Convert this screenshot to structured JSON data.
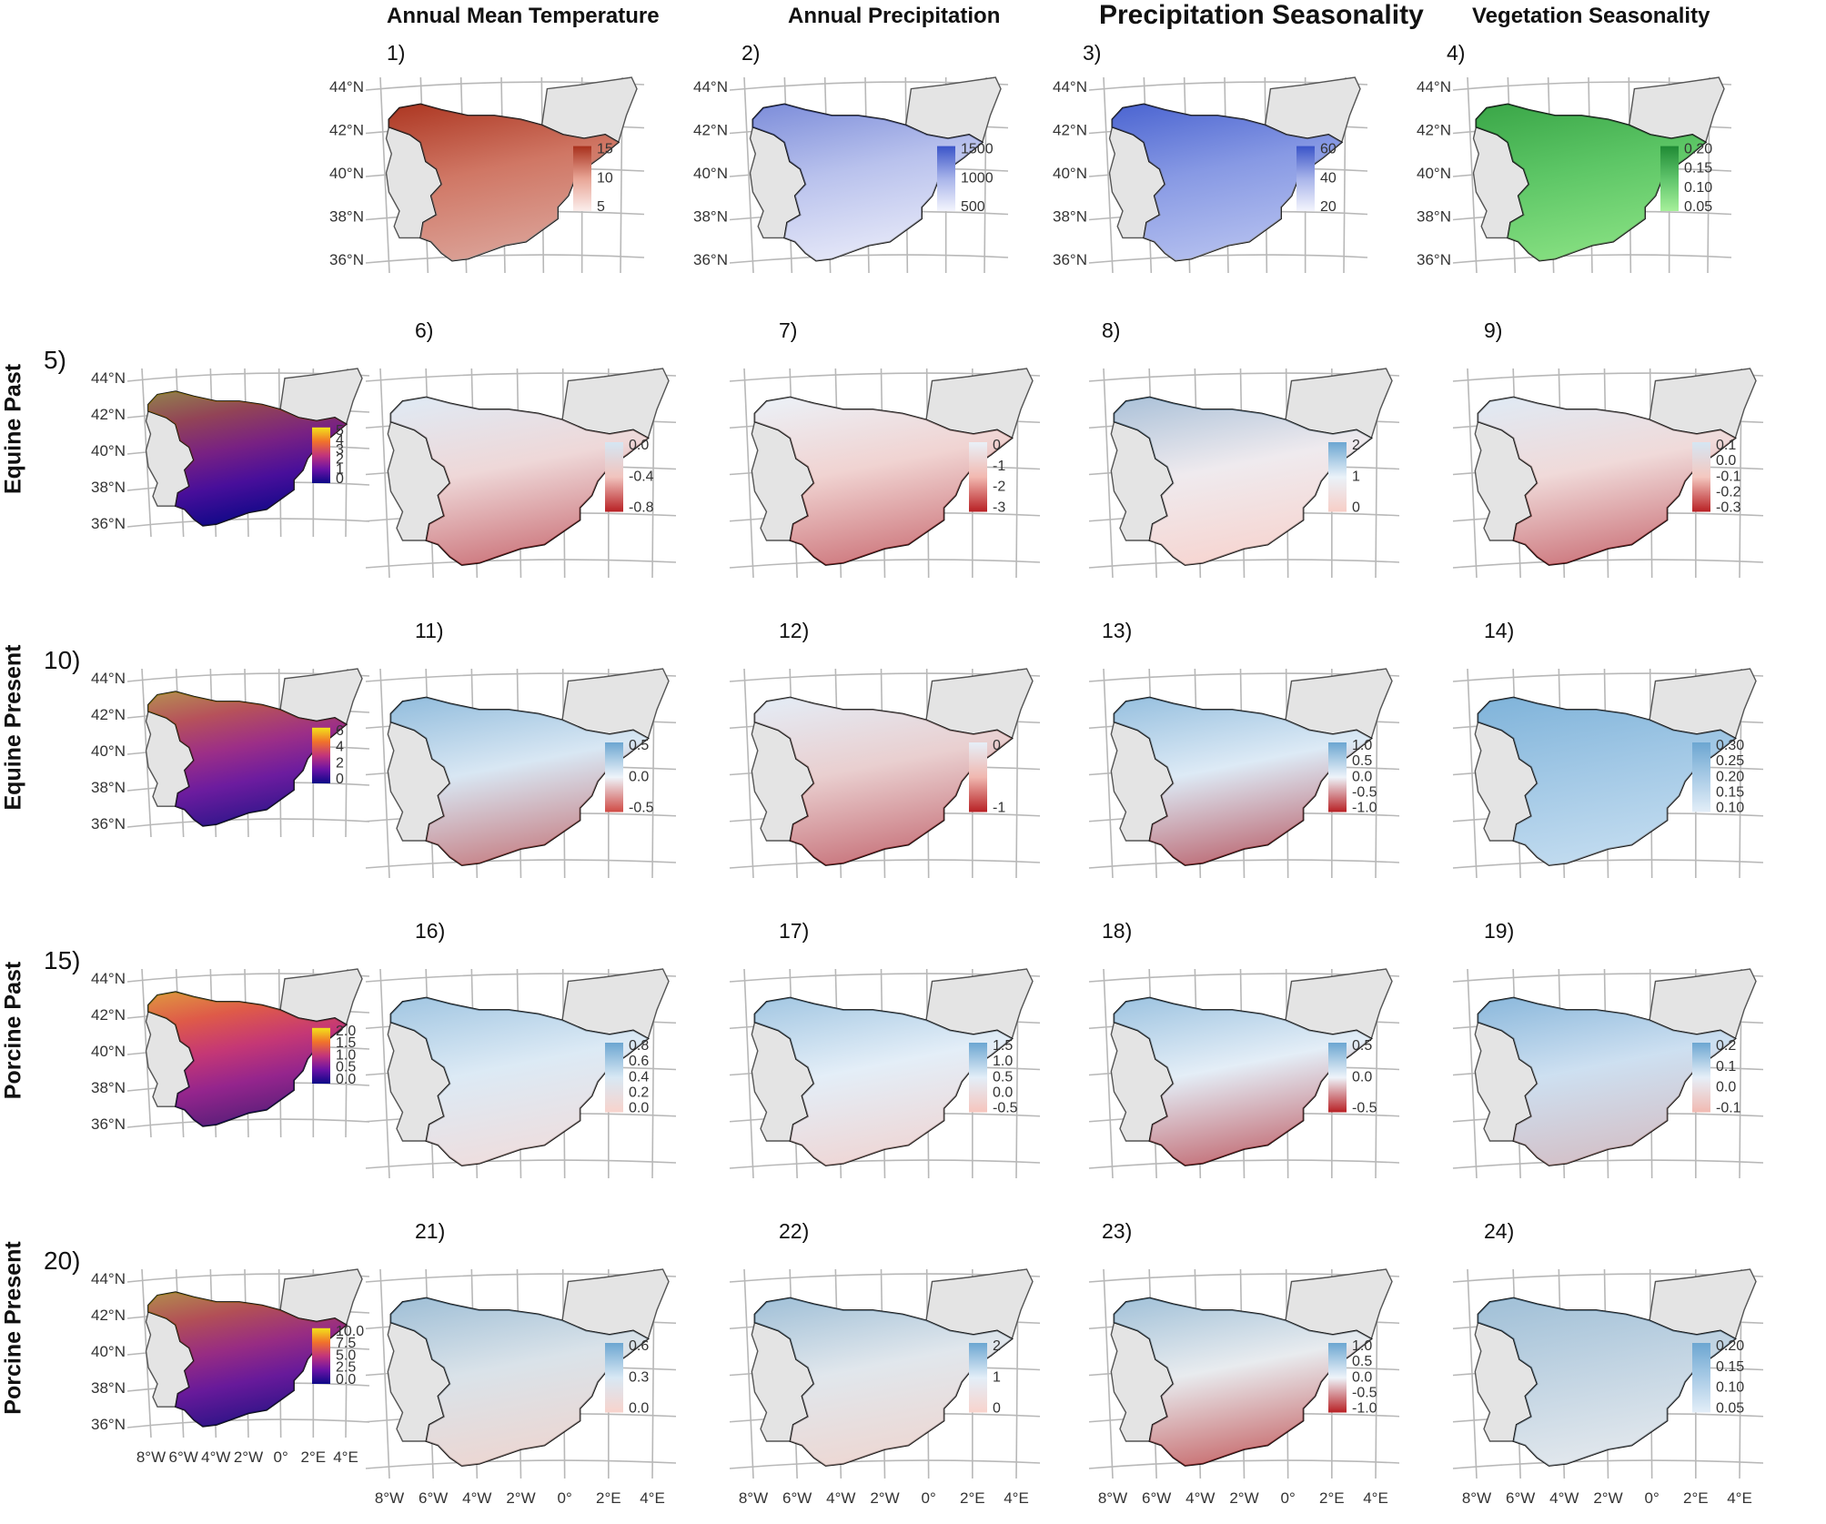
{
  "column_titles": [
    "Annual Mean Temperature",
    "Annual Precipitation",
    "Precipitation Seasonality",
    "Vegetation Seasonality"
  ],
  "row_labels": [
    "Equine Past",
    "Equine Present",
    "Porcine Past",
    "Porcine Present"
  ],
  "lat_labels": [
    "44°N",
    "42°N",
    "40°N",
    "38°N",
    "36°N"
  ],
  "lon_labels": [
    "8°W",
    "6°W",
    "4°W",
    "2°W",
    "0°",
    "2°E",
    "4°E"
  ],
  "panels": [
    {
      "num": "1)",
      "legend": [
        "15",
        "10",
        "5"
      ],
      "colors": [
        "#a8301c",
        "#e8a596",
        "#fbeeec"
      ],
      "fill": "rgb(178,62,40)"
    },
    {
      "num": "2)",
      "legend": [
        "1500",
        "1000",
        "500"
      ],
      "colors": [
        "#3a54c8",
        "#a8b4ea",
        "#f4f5fd"
      ],
      "fill": "rgb(205,210,240)"
    },
    {
      "num": "3)",
      "legend": [
        "60",
        "40",
        "20"
      ],
      "colors": [
        "#3a54c8",
        "#a8b4ea",
        "#f4f5fd"
      ],
      "fill": "rgb(95,120,220)"
    },
    {
      "num": "4)",
      "legend": [
        "0.20",
        "0.15",
        "0.10",
        "0.05"
      ],
      "colors": [
        "#1f8a34",
        "#5fc46b",
        "#a6f09a"
      ],
      "fill": "rgb(90,200,95)"
    },
    {
      "num": "5)",
      "legend": [
        "5",
        "4",
        "3",
        "2",
        "1",
        "0"
      ],
      "colors": [
        "#f2e31a",
        "#f1732a",
        "#c2347b",
        "#6a12a6",
        "#0d0887"
      ],
      "fill": "rgb(30,10,140)"
    },
    {
      "num": "6)",
      "legend": [
        "0.0",
        "-0.4",
        "-0.8"
      ],
      "colors": [
        "#d5e6f3",
        "#f1c4be",
        "#b82024"
      ],
      "fill": "rgb(235,240,248)"
    },
    {
      "num": "7)",
      "legend": [
        "0",
        "-1",
        "-2",
        "-3"
      ],
      "colors": [
        "#e9f1f8",
        "#f2b9b1",
        "#b82024"
      ],
      "fill": "rgb(238,243,249)"
    },
    {
      "num": "8)",
      "legend": [
        "2",
        "1",
        "0"
      ],
      "colors": [
        "#6ca6d1",
        "#eaf2f9",
        "#f7cdc6"
      ],
      "fill": "rgb(245,225,225)"
    },
    {
      "num": "9)",
      "legend": [
        "0.1",
        "0.0",
        "-0.1",
        "-0.2",
        "-0.3"
      ],
      "colors": [
        "#d5e6f3",
        "#f4c8c0",
        "#b82024"
      ],
      "fill": "rgb(235,240,248)"
    },
    {
      "num": "10)",
      "legend": [
        "6",
        "4",
        "2",
        "0"
      ],
      "colors": [
        "#f2e31a",
        "#f1732a",
        "#c2347b",
        "#6a12a6",
        "#0d0887"
      ],
      "fill": "rgb(110,40,150)"
    },
    {
      "num": "11)",
      "legend": [
        "0.5",
        "0.0",
        "-0.5"
      ],
      "colors": [
        "#6ca6d1",
        "#eef4fa",
        "#d04a44"
      ],
      "fill": "rgb(190,215,235)"
    },
    {
      "num": "12)",
      "legend": [
        "0",
        "-1"
      ],
      "colors": [
        "#e6eff8",
        "#f0b8b0",
        "#b82024"
      ],
      "fill": "rgb(225,235,246)"
    },
    {
      "num": "13)",
      "legend": [
        "1.0",
        "0.5",
        "0.0",
        "-0.5",
        "-1.0"
      ],
      "colors": [
        "#6ca6d1",
        "#eef4fa",
        "#b82024"
      ],
      "fill": "rgb(200,222,240)"
    },
    {
      "num": "14)",
      "legend": [
        "0.30",
        "0.25",
        "0.20",
        "0.15",
        "0.10"
      ],
      "colors": [
        "#6ca6d1",
        "#a9cbe6",
        "#e3eef8"
      ],
      "fill": "rgb(150,195,228)"
    },
    {
      "num": "15)",
      "legend": [
        "2.0",
        "1.5",
        "1.0",
        "0.5",
        "0.0"
      ],
      "colors": [
        "#f2e31a",
        "#f1732a",
        "#c2347b",
        "#6a12a6",
        "#0d0887"
      ],
      "fill": "rgb(200,60,110)"
    },
    {
      "num": "16)",
      "legend": [
        "0.8",
        "0.6",
        "0.4",
        "0.2",
        "0.0"
      ],
      "colors": [
        "#6ca6d1",
        "#d8e8f4",
        "#f8d3cc"
      ],
      "fill": "rgb(225,236,246)"
    },
    {
      "num": "17)",
      "legend": [
        "1.5",
        "1.0",
        "0.5",
        "0.0",
        "-0.5"
      ],
      "colors": [
        "#6ca6d1",
        "#e3eef8",
        "#f6c5bd"
      ],
      "fill": "rgb(228,238,247)"
    },
    {
      "num": "18)",
      "legend": [
        "0.5",
        "0.0",
        "-0.5"
      ],
      "colors": [
        "#6ca6d1",
        "#eef4fa",
        "#b82024"
      ],
      "fill": "rgb(215,230,243)"
    },
    {
      "num": "19)",
      "legend": [
        "0.2",
        "0.1",
        "0.0",
        "-0.1"
      ],
      "colors": [
        "#6ca6d1",
        "#e6eff8",
        "#f1b9b1"
      ],
      "fill": "rgb(175,205,232)"
    },
    {
      "num": "20)",
      "legend": [
        "10.0",
        "7.5",
        "5.0",
        "2.5",
        "0.0"
      ],
      "colors": [
        "#f2e31a",
        "#f1732a",
        "#c2347b",
        "#6a12a6",
        "#0d0887"
      ],
      "fill": "rgb(100,35,140)"
    },
    {
      "num": "21)",
      "legend": [
        "0.6",
        "0.3",
        "0.0"
      ],
      "colors": [
        "#6ca6d1",
        "#d8e8f4",
        "#f8d3cc"
      ],
      "fill": "rgb(220,220,220)"
    },
    {
      "num": "22)",
      "legend": [
        "2",
        "1",
        "0"
      ],
      "colors": [
        "#6ca6d1",
        "#e3eef8",
        "#f8d3cc"
      ],
      "fill": "rgb(222,222,222)"
    },
    {
      "num": "23)",
      "legend": [
        "1.0",
        "0.5",
        "0.0",
        "-0.5",
        "-1.0"
      ],
      "colors": [
        "#6ca6d1",
        "#eef4fa",
        "#b82024"
      ],
      "fill": "rgb(225,225,225)"
    },
    {
      "num": "24)",
      "legend": [
        "0.20",
        "0.15",
        "0.10",
        "0.05"
      ],
      "colors": [
        "#6ca6d1",
        "#a9cbe6",
        "#e3eef8"
      ],
      "fill": "rgb(222,222,222)"
    }
  ]
}
